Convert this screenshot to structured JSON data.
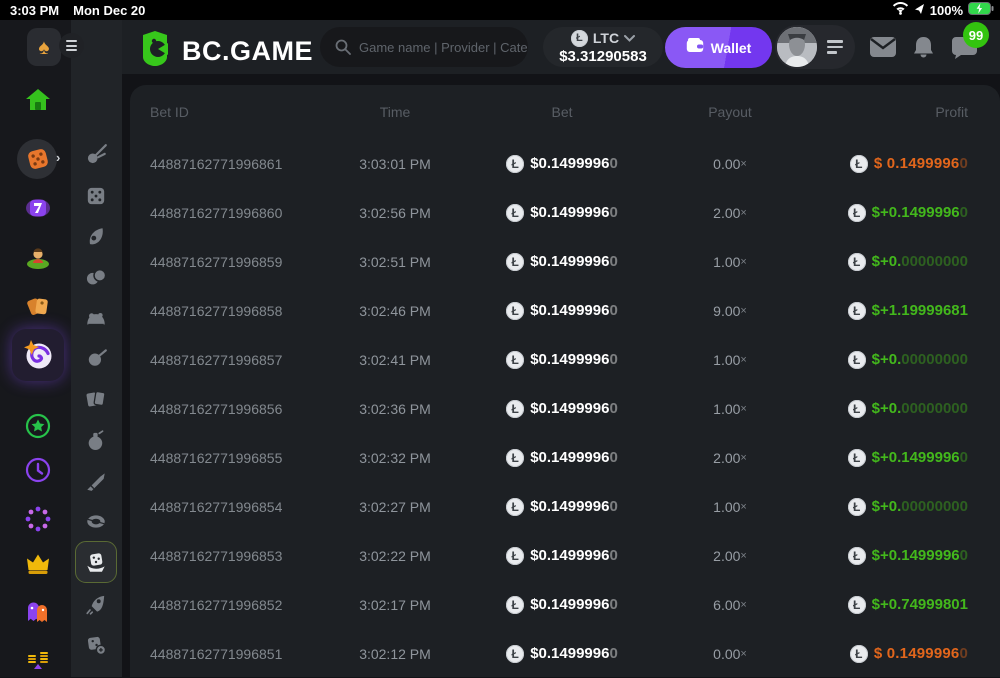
{
  "status_bar": {
    "time": "3:03 PM",
    "date": "Mon Dec 20",
    "battery_percent": "100%"
  },
  "header": {
    "brand": "BC.GAME",
    "search_placeholder": "Game name | Provider | Cate",
    "currency": {
      "code": "LTC",
      "balance": "$3.31290583"
    },
    "wallet_label": "Wallet",
    "chat_badge": "99"
  },
  "sidebar": {
    "primary": [
      {
        "id": "home",
        "icon": "home-icon"
      },
      {
        "id": "casino",
        "icon": "dice-icon",
        "expanded": true
      },
      {
        "id": "slots",
        "icon": "slot-seven-icon"
      },
      {
        "id": "live-casino",
        "icon": "live-dealer-icon"
      },
      {
        "id": "promotions",
        "icon": "tags-icon"
      },
      {
        "id": "bc-originals",
        "icon": "spiral-target-icon",
        "active": true
      },
      {
        "id": "favorites",
        "icon": "star-icon"
      },
      {
        "id": "recent",
        "icon": "clock-icon"
      },
      {
        "id": "challenges",
        "icon": "dotted-loop-icon"
      },
      {
        "id": "vip",
        "icon": "crown-icon"
      },
      {
        "id": "social",
        "icon": "ghosts-icon"
      },
      {
        "id": "staking",
        "icon": "coin-balance-icon"
      }
    ],
    "games": [
      {
        "id": "crash",
        "icon": "comet-icon"
      },
      {
        "id": "dice",
        "icon": "die-icon"
      },
      {
        "id": "limbo",
        "icon": "flame-icon"
      },
      {
        "id": "coinflip",
        "icon": "coins-icon"
      },
      {
        "id": "cave",
        "icon": "rocks-icon"
      },
      {
        "id": "twist",
        "icon": "ball-icon"
      },
      {
        "id": "hilo",
        "icon": "cards-icon"
      },
      {
        "id": "keno",
        "icon": "bomb-icon"
      },
      {
        "id": "swords",
        "icon": "sword-icon"
      },
      {
        "id": "wheel",
        "icon": "chip-icon"
      },
      {
        "id": "classic-dice",
        "icon": "hand-dice-icon",
        "active": true
      },
      {
        "id": "rocket",
        "icon": "rocket-icon"
      },
      {
        "id": "craps",
        "icon": "dice-pair-icon"
      }
    ]
  },
  "table": {
    "columns": [
      "Bet ID",
      "Time",
      "Bet",
      "Payout",
      "Profit"
    ],
    "multiplier_suffix": "×",
    "rows": [
      {
        "id": "44887162771996861",
        "time": "3:03:01 PM",
        "bet_main": "$0.1499996",
        "bet_dim": "0",
        "payout": "0.00",
        "profit_type": "loss",
        "profit_main": "$ 0.1499996",
        "profit_dim": "0"
      },
      {
        "id": "44887162771996860",
        "time": "3:02:56 PM",
        "bet_main": "$0.1499996",
        "bet_dim": "0",
        "payout": "2.00",
        "profit_type": "win",
        "profit_main": "$+0.1499996",
        "profit_dim": "0"
      },
      {
        "id": "44887162771996859",
        "time": "3:02:51 PM",
        "bet_main": "$0.1499996",
        "bet_dim": "0",
        "payout": "1.00",
        "profit_type": "win",
        "profit_main": "$+0.",
        "profit_dim": "00000000"
      },
      {
        "id": "44887162771996858",
        "time": "3:02:46 PM",
        "bet_main": "$0.1499996",
        "bet_dim": "0",
        "payout": "9.00",
        "profit_type": "win",
        "profit_main": "$+1.19999681",
        "profit_dim": ""
      },
      {
        "id": "44887162771996857",
        "time": "3:02:41 PM",
        "bet_main": "$0.1499996",
        "bet_dim": "0",
        "payout": "1.00",
        "profit_type": "win",
        "profit_main": "$+0.",
        "profit_dim": "00000000"
      },
      {
        "id": "44887162771996856",
        "time": "3:02:36 PM",
        "bet_main": "$0.1499996",
        "bet_dim": "0",
        "payout": "1.00",
        "profit_type": "win",
        "profit_main": "$+0.",
        "profit_dim": "00000000"
      },
      {
        "id": "44887162771996855",
        "time": "3:02:32 PM",
        "bet_main": "$0.1499996",
        "bet_dim": "0",
        "payout": "2.00",
        "profit_type": "win",
        "profit_main": "$+0.1499996",
        "profit_dim": "0"
      },
      {
        "id": "44887162771996854",
        "time": "3:02:27 PM",
        "bet_main": "$0.1499996",
        "bet_dim": "0",
        "payout": "1.00",
        "profit_type": "win",
        "profit_main": "$+0.",
        "profit_dim": "00000000"
      },
      {
        "id": "44887162771996853",
        "time": "3:02:22 PM",
        "bet_main": "$0.1499996",
        "bet_dim": "0",
        "payout": "2.00",
        "profit_type": "win",
        "profit_main": "$+0.1499996",
        "profit_dim": "0"
      },
      {
        "id": "44887162771996852",
        "time": "3:02:17 PM",
        "bet_main": "$0.1499996",
        "bet_dim": "0",
        "payout": "6.00",
        "profit_type": "win",
        "profit_main": "$+0.74999801",
        "profit_dim": ""
      },
      {
        "id": "44887162771996851",
        "time": "3:02:12 PM",
        "bet_main": "$0.1499996",
        "bet_dim": "0",
        "payout": "0.00",
        "profit_type": "loss",
        "profit_main": "$ 0.1499996",
        "profit_dim": "0"
      }
    ]
  },
  "colors": {
    "accent_green": "#43b81c",
    "loss_orange": "#e2661c",
    "wallet_purple": "#7b3ff2",
    "badge_green": "#33c40f",
    "coin_currency": "LTC"
  }
}
